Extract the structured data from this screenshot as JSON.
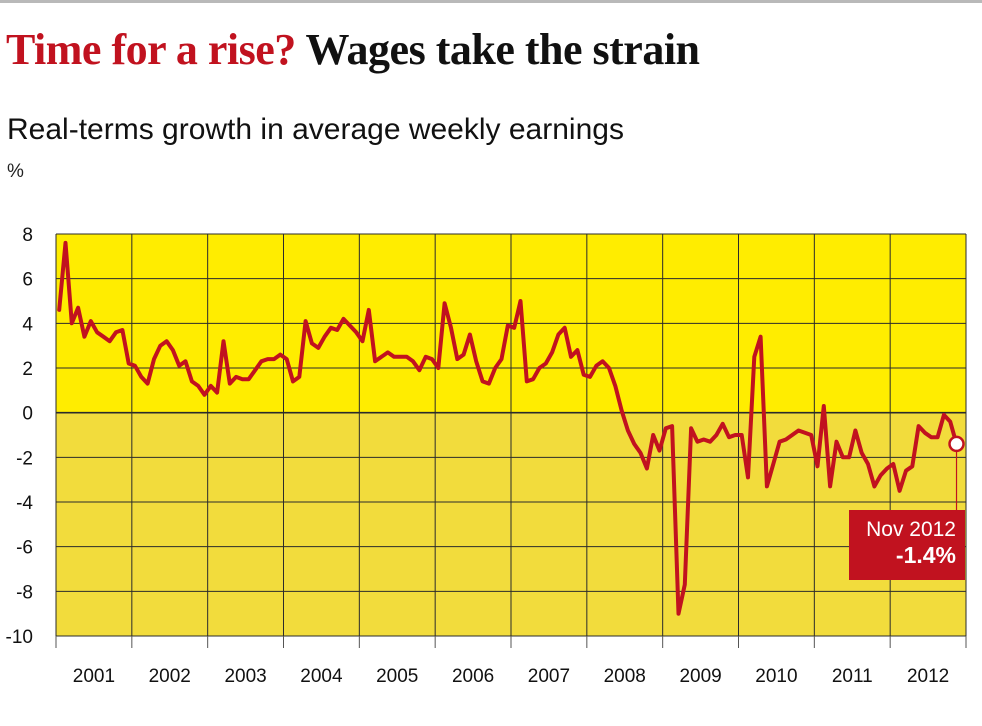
{
  "headline": {
    "question": "Time for a rise?",
    "statement": "Wages take the strain"
  },
  "colors": {
    "headline_red": "#c1121f",
    "plot_upper": "#ffed00",
    "plot_lower": "#f2dc3c",
    "line": "#c1121f",
    "grid": "#2b2b2b"
  },
  "chart_data": {
    "type": "line",
    "title": "Real-terms growth in average weekly earnings",
    "ylabel": "%",
    "xlabel": "",
    "ylim": [
      -10,
      8
    ],
    "yticks": [
      8,
      6,
      4,
      2,
      0,
      -2,
      -4,
      -6,
      -8,
      -10
    ],
    "xlim": [
      "2001-01",
      "2012-12"
    ],
    "xtick_labels": [
      "2001",
      "2002",
      "2003",
      "2004",
      "2005",
      "2006",
      "2007",
      "2008",
      "2009",
      "2010",
      "2011",
      "2012"
    ],
    "grid": true,
    "series": [
      {
        "x": [
          "2001-01",
          "2001-02",
          "2001-03",
          "2001-04",
          "2001-05",
          "2001-06",
          "2001-07",
          "2001-08",
          "2001-09",
          "2001-10",
          "2001-11",
          "2001-12",
          "2002-01",
          "2002-02",
          "2002-03",
          "2002-04",
          "2002-05",
          "2002-06",
          "2002-07",
          "2002-08",
          "2002-09",
          "2002-10",
          "2002-11",
          "2002-12",
          "2003-01",
          "2003-02",
          "2003-03",
          "2003-04",
          "2003-05",
          "2003-06",
          "2003-07",
          "2003-08",
          "2003-09",
          "2003-10",
          "2003-11",
          "2003-12",
          "2004-01",
          "2004-02",
          "2004-03",
          "2004-04",
          "2004-05",
          "2004-06",
          "2004-07",
          "2004-08",
          "2004-09",
          "2004-10",
          "2004-11",
          "2004-12",
          "2005-01",
          "2005-02",
          "2005-03",
          "2005-04",
          "2005-05",
          "2005-06",
          "2005-07",
          "2005-08",
          "2005-09",
          "2005-10",
          "2005-11",
          "2005-12",
          "2006-01",
          "2006-02",
          "2006-03",
          "2006-04",
          "2006-05",
          "2006-06",
          "2006-07",
          "2006-08",
          "2006-09",
          "2006-10",
          "2006-11",
          "2006-12",
          "2007-01",
          "2007-02",
          "2007-03",
          "2007-04",
          "2007-05",
          "2007-06",
          "2007-07",
          "2007-08",
          "2007-09",
          "2007-10",
          "2007-11",
          "2007-12",
          "2008-01",
          "2008-02",
          "2008-03",
          "2008-04",
          "2008-05",
          "2008-06",
          "2008-07",
          "2008-08",
          "2008-09",
          "2008-10",
          "2008-11",
          "2008-12",
          "2009-01",
          "2009-02",
          "2009-03",
          "2009-04",
          "2009-05",
          "2009-06",
          "2009-07",
          "2009-08",
          "2009-09",
          "2009-10",
          "2009-11",
          "2009-12",
          "2010-01",
          "2010-02",
          "2010-03",
          "2010-04",
          "2010-05",
          "2010-06",
          "2010-07",
          "2010-08",
          "2010-09",
          "2010-10",
          "2010-11",
          "2010-12",
          "2011-01",
          "2011-02",
          "2011-03",
          "2011-04",
          "2011-05",
          "2011-06",
          "2011-07",
          "2011-08",
          "2011-09",
          "2011-10",
          "2011-11",
          "2011-12",
          "2012-01",
          "2012-02",
          "2012-03",
          "2012-04",
          "2012-05",
          "2012-06",
          "2012-07",
          "2012-08",
          "2012-09",
          "2012-10",
          "2012-11"
        ],
        "values": [
          4.6,
          7.6,
          4.0,
          4.7,
          3.4,
          4.1,
          3.6,
          3.4,
          3.2,
          3.6,
          3.7,
          2.2,
          2.1,
          1.6,
          1.3,
          2.4,
          3.0,
          3.2,
          2.8,
          2.1,
          2.3,
          1.4,
          1.2,
          0.8,
          1.2,
          0.9,
          3.2,
          1.3,
          1.6,
          1.5,
          1.5,
          1.9,
          2.3,
          2.4,
          2.4,
          2.6,
          2.4,
          1.4,
          1.6,
          4.1,
          3.1,
          2.9,
          3.4,
          3.8,
          3.7,
          4.2,
          3.9,
          3.6,
          3.2,
          4.6,
          2.3,
          2.5,
          2.7,
          2.5,
          2.5,
          2.5,
          2.3,
          1.9,
          2.5,
          2.4,
          2.0,
          4.9,
          3.8,
          2.4,
          2.6,
          3.5,
          2.3,
          1.4,
          1.3,
          2.0,
          2.4,
          3.9,
          3.8,
          5.0,
          1.4,
          1.5,
          2.0,
          2.2,
          2.7,
          3.5,
          3.8,
          2.5,
          2.8,
          1.7,
          1.6,
          2.1,
          2.3,
          2.0,
          1.2,
          0.1,
          -0.8,
          -1.4,
          -1.8,
          -2.5,
          -1.0,
          -1.7,
          -0.7,
          -0.6,
          -9.0,
          -7.7,
          -0.7,
          -1.3,
          -1.2,
          -1.3,
          -1.0,
          -0.5,
          -1.1,
          -1.0,
          -1.0,
          -2.9,
          2.5,
          3.4,
          -3.3,
          -2.3,
          -1.3,
          -1.2,
          -1.0,
          -0.8,
          -0.9,
          -1.0,
          -2.4,
          0.3,
          -3.3,
          -1.3,
          -2.0,
          -2.0,
          -0.8,
          -1.8,
          -2.3,
          -3.3,
          -2.8,
          -2.5,
          -2.3,
          -3.5,
          -2.6,
          -2.4,
          -0.6,
          -0.9,
          -1.1,
          -1.1,
          -0.1,
          -0.4,
          -1.4
        ]
      }
    ],
    "annotations": [
      {
        "x": "2012-11",
        "y": -1.4,
        "date_label": "Nov 2012",
        "value_label": "-1.4%"
      }
    ]
  }
}
